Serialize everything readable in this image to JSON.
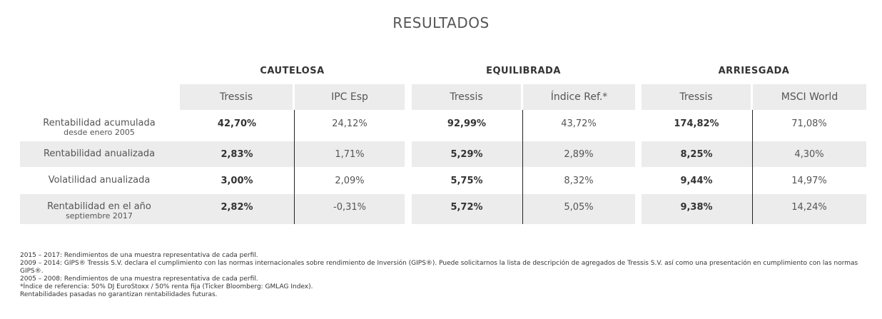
{
  "title": "RESULTADOS",
  "groups": [
    {
      "name": "CAUTELOSA",
      "col1": "Tressis",
      "col2": "IPC Esp"
    },
    {
      "name": "EQUILIBRADA",
      "col1": "Tressis",
      "col2": "Índice Ref.*"
    },
    {
      "name": "ARRIESGADA",
      "col1": "Tressis",
      "col2": "MSCI World"
    }
  ],
  "rows": [
    {
      "label": "Rentabilidad acumulada",
      "sublabel": "desde enero 2005",
      "values": [
        "42,70%",
        "24,12%",
        "92,99%",
        "43,72%",
        "174,82%",
        "71,08%"
      ]
    },
    {
      "label": "Rentabilidad anualizada",
      "sublabel": "",
      "values": [
        "2,83%",
        "1,71%",
        "5,29%",
        "2,89%",
        "8,25%",
        "4,30%"
      ]
    },
    {
      "label": "Volatilidad anualizada",
      "sublabel": "",
      "values": [
        "3,00%",
        "2,09%",
        "5,75%",
        "8,32%",
        "9,44%",
        "14,97%"
      ]
    },
    {
      "label": "Rentabilidad en el año",
      "sublabel": "septiembre 2017",
      "values": [
        "2,82%",
        "-0,31%",
        "5,72%",
        "5,05%",
        "9,38%",
        "14,24%"
      ]
    }
  ],
  "notes": [
    "2015 – 2017: Rendimientos de una muestra representativa de cada perfil.",
    "2009 – 2014: GIPS® Tressis S.V. declara el cumplimiento con las normas internacionales sobre rendimiento de Inversión (GIPS®). Puede solicitarnos la lista de descripción de agregados de Tressis S.V. así como una presentación en cumplimiento con las normas GIPS®.",
    "2005 – 2008: Rendimientos de una muestra representativa de cada perfil.",
    "*Índice de referencia: 50% DJ EuroStoxx / 50% renta fija (Ticker Bloomberg: GMLAG Index).",
    "Rentabilidades pasadas no garantizan rentabilidades futuras."
  ]
}
